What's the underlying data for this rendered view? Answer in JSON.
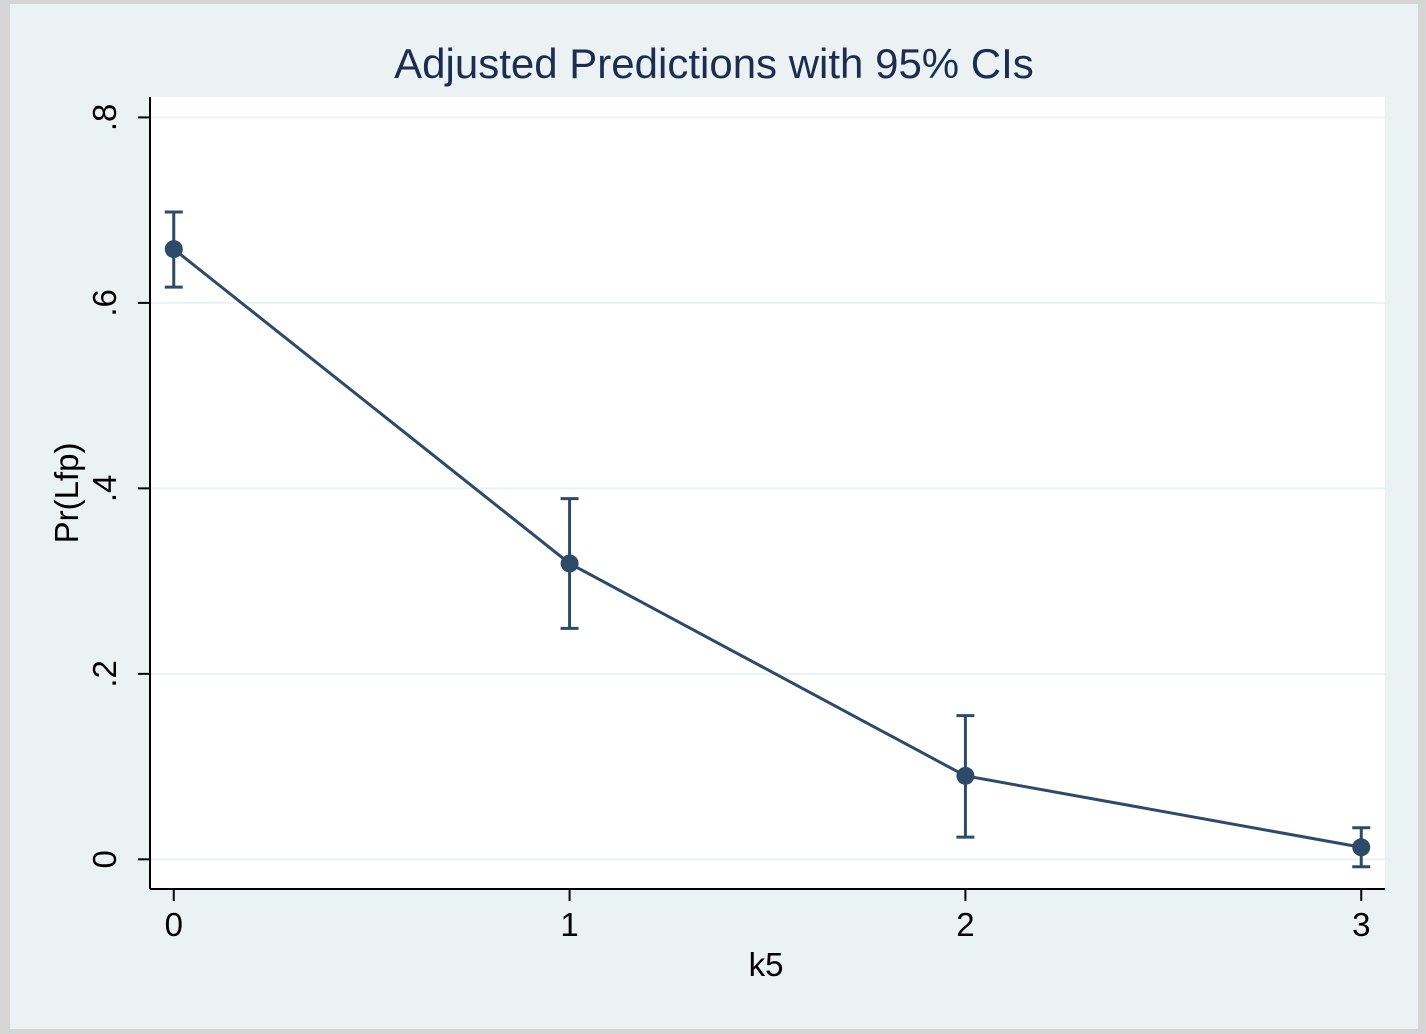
{
  "colors": {
    "outer_background": "#eaf2f3",
    "plot_background": "#ffffff",
    "gridline": "#eaf2f3",
    "series": "#2d4a6b",
    "title": "#1e2d4f",
    "axis": "#000000"
  },
  "chart_data": {
    "type": "line",
    "title": "Adjusted Predictions with 95% CIs",
    "xlabel": "k5",
    "ylabel": "Pr(Lfp)",
    "xlim": [
      -0.06,
      3.06
    ],
    "ylim": [
      -0.032,
      0.822
    ],
    "x_ticks": [
      0,
      1,
      2,
      3
    ],
    "x_tick_labels": [
      "0",
      "1",
      "2",
      "3"
    ],
    "y_ticks": [
      0,
      0.2,
      0.4,
      0.6,
      0.8
    ],
    "y_tick_labels": [
      "0",
      ".2",
      ".4",
      ".6",
      ".8"
    ],
    "grid": true,
    "legend": "none",
    "series": [
      {
        "x": [
          0,
          1,
          2,
          3
        ],
        "values": [
          0.658,
          0.319,
          0.09,
          0.013
        ],
        "ci_lower": [
          0.617,
          0.249,
          0.024,
          -0.008
        ],
        "ci_upper": [
          0.698,
          0.389,
          0.155,
          0.034
        ]
      }
    ]
  }
}
